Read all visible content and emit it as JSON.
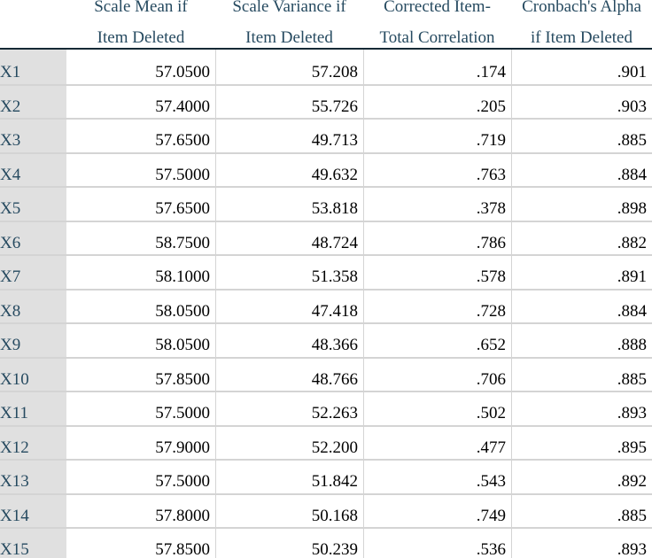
{
  "table": {
    "columns": [
      [
        "Scale Mean if",
        "Item Deleted"
      ],
      [
        "Scale Variance if",
        "Item Deleted"
      ],
      [
        "Corrected Item-",
        "Total Correlation"
      ],
      [
        "Cronbach's Alpha",
        "if Item Deleted"
      ]
    ],
    "rows": [
      [
        "X1",
        "57.0500",
        "57.208",
        ".174",
        ".901"
      ],
      [
        "X2",
        "57.4000",
        "55.726",
        ".205",
        ".903"
      ],
      [
        "X3",
        "57.6500",
        "49.713",
        ".719",
        ".885"
      ],
      [
        "X4",
        "57.5000",
        "49.632",
        ".763",
        ".884"
      ],
      [
        "X5",
        "57.6500",
        "53.818",
        ".378",
        ".898"
      ],
      [
        "X6",
        "58.7500",
        "48.724",
        ".786",
        ".882"
      ],
      [
        "X7",
        "58.1000",
        "51.358",
        ".578",
        ".891"
      ],
      [
        "X8",
        "58.0500",
        "47.418",
        ".728",
        ".884"
      ],
      [
        "X9",
        "58.0500",
        "48.366",
        ".652",
        ".888"
      ],
      [
        "X10",
        "57.8500",
        "48.766",
        ".706",
        ".885"
      ],
      [
        "X11",
        "57.5000",
        "52.263",
        ".502",
        ".893"
      ],
      [
        "X12",
        "57.9000",
        "52.200",
        ".477",
        ".895"
      ],
      [
        "X13",
        "57.5000",
        "51.842",
        ".543",
        ".892"
      ],
      [
        "X14",
        "57.8000",
        "50.168",
        ".749",
        ".885"
      ],
      [
        "X15",
        "57.8500",
        "50.239",
        ".536",
        ".893"
      ]
    ]
  }
}
